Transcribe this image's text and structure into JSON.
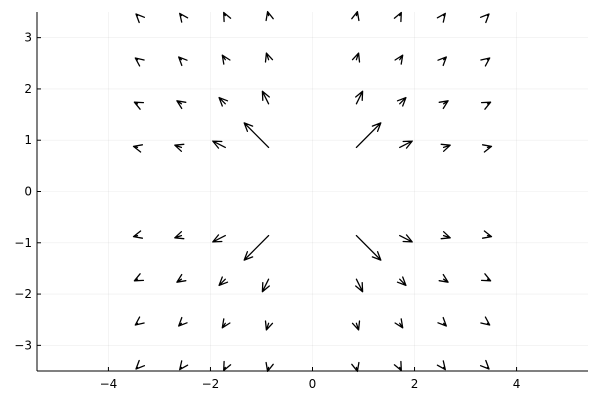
{
  "chart_data": {
    "type": "quiver",
    "title": "",
    "xlabel": "",
    "ylabel": "",
    "xlim": [
      -5.4,
      5.4
    ],
    "ylim": [
      -3.5,
      3.5
    ],
    "xticks": [
      -4,
      -2,
      0,
      2,
      4
    ],
    "yticks": [
      -3,
      -2,
      -1,
      0,
      1,
      2,
      3
    ],
    "xtick_labels": [
      "−4",
      "−2",
      "0",
      "2",
      "4"
    ],
    "ytick_labels": [
      "−3",
      "−2",
      "−1",
      "0",
      "1",
      "2",
      "3"
    ],
    "grid": true,
    "legend": "none",
    "color": "#000000",
    "grid_x": [
      -3.43,
      -2.57,
      -1.71,
      -0.86,
      0.86,
      1.71,
      2.57,
      3.43
    ],
    "grid_y": [
      -3.43,
      -2.57,
      -1.71,
      -0.86,
      0.86,
      1.71,
      2.57,
      3.43
    ],
    "field": "u = x / r^3, v = y / r^3 (radial outward, scaled)",
    "scale": 1.0
  }
}
